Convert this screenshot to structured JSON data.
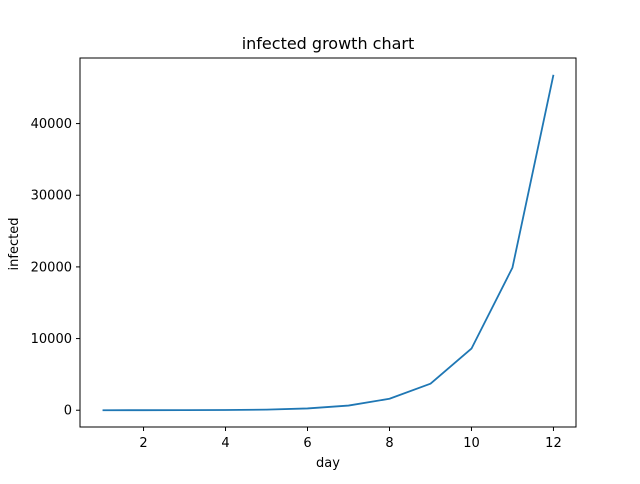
{
  "chart_data": {
    "type": "line",
    "title": "infected growth chart",
    "xlabel": "day",
    "ylabel": "infected",
    "xlim": [
      0.45,
      12.55
    ],
    "ylim": [
      -2340,
      49150
    ],
    "x_ticks": [
      2,
      4,
      6,
      8,
      10,
      12
    ],
    "y_ticks": [
      0,
      10000,
      20000,
      30000,
      40000
    ],
    "x_tick_labels": [
      "2",
      "4",
      "6",
      "8",
      "10",
      "12"
    ],
    "y_tick_labels": [
      "0",
      "10000",
      "20000",
      "30000",
      "40000"
    ],
    "grid": false,
    "legend": "none",
    "series": [
      {
        "color": "#1f77b4",
        "x": [
          1,
          2,
          3,
          4,
          5,
          6,
          7,
          8,
          9,
          10,
          11,
          12
        ],
        "y": [
          2,
          5,
          15,
          35,
          85,
          250,
          650,
          1600,
          3700,
          8600,
          19900,
          46800
        ]
      }
    ]
  }
}
